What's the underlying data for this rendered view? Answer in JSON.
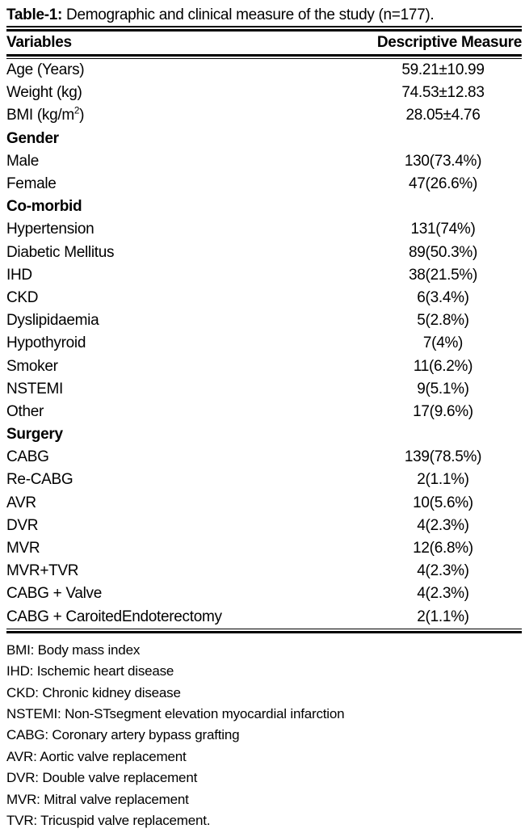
{
  "table": {
    "title": {
      "label": "Table-1:",
      "text": "Demographic and clinical measure of the study (n=177)."
    },
    "header": {
      "variables": "Variables",
      "measure": "Descriptive Measure"
    },
    "rows": [
      {
        "type": "data",
        "label": "Age (Years)",
        "value": "59.21±10.99"
      },
      {
        "type": "data",
        "label": "Weight (kg)",
        "value": "74.53±12.83"
      },
      {
        "type": "data",
        "label": "BMI (kg/m",
        "sup": "2",
        "label_end": ")",
        "value": "28.05±4.76"
      },
      {
        "type": "section",
        "label": "Gender",
        "value": ""
      },
      {
        "type": "data",
        "label": "Male",
        "value": "130(73.4%)"
      },
      {
        "type": "data",
        "label": "Female",
        "value": "47(26.6%)"
      },
      {
        "type": "section",
        "label": "Co-morbid",
        "value": ""
      },
      {
        "type": "data",
        "label": "Hypertension",
        "value": "131(74%)"
      },
      {
        "type": "data",
        "label": "Diabetic Mellitus",
        "value": "89(50.3%)"
      },
      {
        "type": "data",
        "label": "IHD",
        "value": "38(21.5%)"
      },
      {
        "type": "data",
        "label": "CKD",
        "value": "6(3.4%)"
      },
      {
        "type": "data",
        "label": "Dyslipidaemia",
        "value": "5(2.8%)"
      },
      {
        "type": "data",
        "label": "Hypothyroid",
        "value": "7(4%)"
      },
      {
        "type": "data",
        "label": "Smoker",
        "value": "11(6.2%)"
      },
      {
        "type": "data",
        "label": "NSTEMI",
        "value": "9(5.1%)"
      },
      {
        "type": "data",
        "label": "Other",
        "value": "17(9.6%)"
      },
      {
        "type": "section",
        "label": "Surgery",
        "value": ""
      },
      {
        "type": "data",
        "label": "CABG",
        "value": "139(78.5%)"
      },
      {
        "type": "data",
        "label": "Re-CABG",
        "value": "2(1.1%)"
      },
      {
        "type": "data",
        "label": "AVR",
        "value": "10(5.6%)"
      },
      {
        "type": "data",
        "label": "DVR",
        "value": "4(2.3%)"
      },
      {
        "type": "data",
        "label": "MVR",
        "value": "12(6.8%)"
      },
      {
        "type": "data",
        "label": "MVR+TVR",
        "value": "4(2.3%)"
      },
      {
        "type": "data",
        "label": "CABG + Valve",
        "value": "4(2.3%)"
      },
      {
        "type": "data",
        "label": "CABG + CaroitedEndoterectomy",
        "value": "2(1.1%)"
      }
    ],
    "footnotes": [
      "BMI: Body mass index",
      "IHD: Ischemic heart disease",
      "CKD: Chronic kidney disease",
      "NSTEMI: Non-STsegment elevation myocardial infarction",
      "CABG: Coronary artery bypass grafting",
      "AVR: Aortic valve replacement",
      "DVR: Double valve replacement",
      "MVR: Mitral valve replacement",
      "TVR: Tricuspid valve replacement."
    ]
  }
}
